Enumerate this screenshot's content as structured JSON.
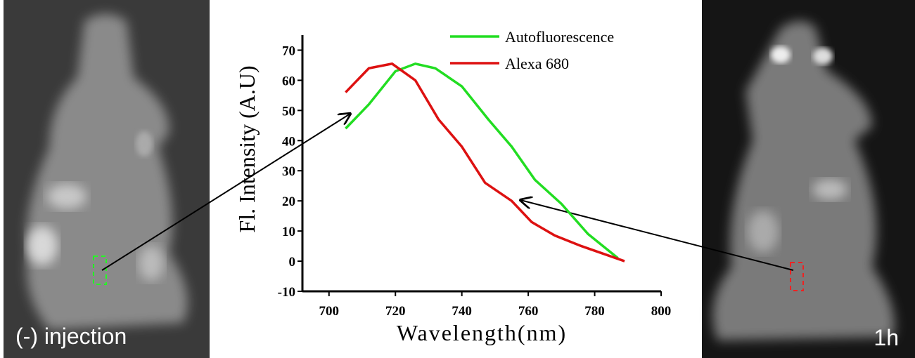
{
  "chart_data": {
    "type": "line",
    "xlabel": "Wavelength(nm)",
    "ylabel": "Fl. Intensity (A.U)",
    "xlim": [
      692,
      800
    ],
    "ylim": [
      -10,
      75
    ],
    "xticks": [
      700,
      720,
      740,
      760,
      780,
      800
    ],
    "yticks": [
      -10,
      0,
      10,
      20,
      30,
      40,
      50,
      60,
      70
    ],
    "legend": "upper right",
    "series": [
      {
        "name": "Autofluorescence",
        "color": "#22dd22",
        "x": [
          705,
          712,
          720,
          726,
          732,
          740,
          748,
          755,
          762,
          770,
          778,
          787
        ],
        "values": [
          44,
          52,
          63,
          65.5,
          64,
          58,
          47,
          38,
          27,
          19,
          9,
          1
        ]
      },
      {
        "name": "Alexa 680",
        "color": "#dd1111",
        "x": [
          705,
          712,
          719,
          726,
          733,
          740,
          747,
          755,
          761,
          768,
          776,
          789
        ],
        "values": [
          56,
          64,
          65.5,
          60,
          47,
          38,
          26,
          20,
          13,
          8.5,
          5,
          0
        ]
      }
    ]
  },
  "images": {
    "left_label": "(-) injection",
    "right_label": "1h"
  }
}
